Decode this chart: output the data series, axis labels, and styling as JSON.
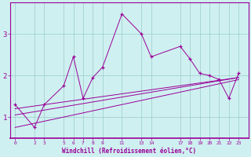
{
  "xlabel": "Windchill (Refroidissement éolien,°C)",
  "bg_color": "#cff0f0",
  "line_color": "#990099",
  "grid_color": "#99cccc",
  "x_ticks": [
    0,
    2,
    3,
    5,
    6,
    7,
    8,
    9,
    11,
    13,
    14,
    17,
    18,
    19,
    20,
    21,
    22,
    23
  ],
  "xlim": [
    -0.5,
    24.0
  ],
  "ylim": [
    0.5,
    3.75
  ],
  "y_ticks": [
    1,
    2,
    3
  ],
  "main_x": [
    0,
    2,
    3,
    5,
    6,
    7,
    8,
    9,
    11,
    13,
    14,
    17,
    18,
    19,
    20,
    21,
    22,
    23
  ],
  "main_y": [
    1.3,
    0.75,
    1.3,
    1.75,
    2.45,
    1.45,
    1.95,
    2.2,
    3.48,
    3.0,
    2.45,
    2.7,
    2.4,
    2.05,
    2.0,
    1.9,
    1.45,
    2.05
  ],
  "line1_x": [
    0,
    23
  ],
  "line1_y": [
    1.05,
    1.95
  ],
  "line2_x": [
    0,
    23
  ],
  "line2_y": [
    0.75,
    1.9
  ],
  "line3_x": [
    0,
    23
  ],
  "line3_y": [
    1.2,
    1.95
  ]
}
